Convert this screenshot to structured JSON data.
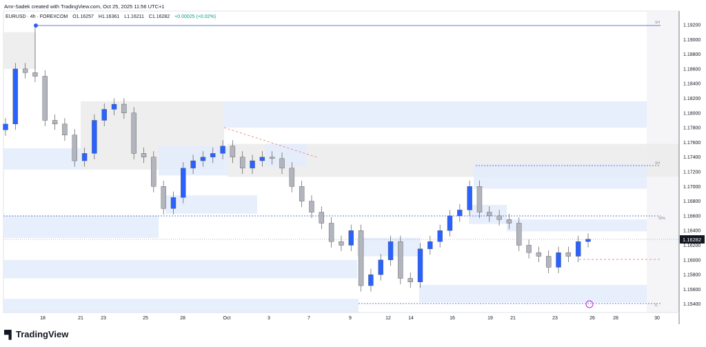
{
  "credit": "Amr-Sadek created with TradingView.com, Oct 25, 2025 11:56 UTC+1",
  "legend": {
    "symbol": "EURUSD · 4h · FOREXCOM",
    "open": "O1.16257",
    "high": "H1.16361",
    "low": "L1.16211",
    "close": "C1.16282",
    "change": "+0.00025 (+0.02%)"
  },
  "brand": "TradingView",
  "colors": {
    "up": "#2962ff",
    "down": "#b2b5be",
    "zone_blue": "#e3ebfb",
    "zone_gray": "#ebebeb",
    "line": "#5b7fd8"
  },
  "chart_data": {
    "type": "candlestick",
    "title": "",
    "ylim": [
      1.153,
      1.1935
    ],
    "y_ticks": [
      "1.19200",
      "1.19000",
      "1.18800",
      "1.18600",
      "1.18400",
      "1.18200",
      "1.18000",
      "1.17800",
      "1.17600",
      "1.17400",
      "1.17200",
      "1.17000",
      "1.16800",
      "1.16600",
      "1.16400",
      "1.16200",
      "1.16000",
      "1.15800",
      "1.15600",
      "1.15400"
    ],
    "x_ticks": [
      "18",
      "21",
      "23",
      "25",
      "28",
      "Oct",
      "3",
      "7",
      "9",
      "12",
      "14",
      "16",
      "19",
      "21",
      "23",
      "26",
      "28",
      "30"
    ],
    "current_price": "1.16282",
    "closes": [
      1.1785,
      1.186,
      1.1855,
      1.185,
      1.179,
      1.1785,
      1.177,
      1.1735,
      1.1745,
      1.179,
      1.1805,
      1.1812,
      1.18,
      1.1745,
      1.174,
      1.17,
      1.167,
      1.1685,
      1.1725,
      1.1735,
      1.174,
      1.1745,
      1.1755,
      1.174,
      1.1725,
      1.1735,
      1.174,
      1.1738,
      1.1725,
      1.17,
      1.168,
      1.1665,
      1.165,
      1.1625,
      1.162,
      1.164,
      1.1565,
      1.158,
      1.16,
      1.1625,
      1.1575,
      1.157,
      1.1615,
      1.1625,
      1.164,
      1.166,
      1.1668,
      1.17,
      1.1665,
      1.166,
      1.1655,
      1.165,
      1.162,
      1.161,
      1.1605,
      1.159,
      1.161,
      1.1605,
      1.1625,
      1.16282
    ],
    "annotations": [
      "SH",
      "SH",
      "50%",
      "IL"
    ]
  }
}
